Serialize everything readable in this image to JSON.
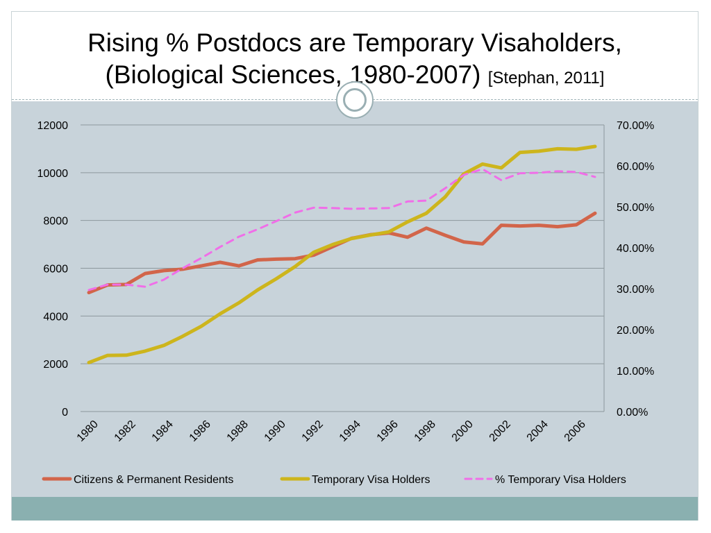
{
  "slide": {
    "title_line1": "Rising % Postdocs are Temporary Visaholders,",
    "title_line2": "(Biological Sciences, 1980-2007)",
    "citation": "[Stephan, 2011]"
  },
  "colors": {
    "citizens": "#d2654a",
    "temporary": "#cdb51c",
    "percent": "#f06ee8",
    "grid": "#8c979c",
    "panel": "#c8d3da",
    "footer": "#8ab0b0"
  },
  "chart_data": {
    "type": "line",
    "title": "",
    "xlabel": "",
    "ylabel": "",
    "x": [
      1980,
      1981,
      1982,
      1983,
      1984,
      1985,
      1986,
      1987,
      1988,
      1989,
      1990,
      1991,
      1992,
      1993,
      1994,
      1995,
      1996,
      1997,
      1998,
      1999,
      2000,
      2001,
      2002,
      2003,
      2004,
      2005,
      2006,
      2007
    ],
    "x_tick_labels": [
      "1980",
      "1982",
      "1984",
      "1986",
      "1988",
      "1990",
      "1992",
      "1994",
      "1996",
      "1998",
      "2000",
      "2002",
      "2004",
      "2006"
    ],
    "ylim": [
      0,
      12000
    ],
    "y_ticks": [
      "0",
      "2000",
      "4000",
      "6000",
      "8000",
      "10000",
      "12000"
    ],
    "y2lim": [
      0,
      0.7
    ],
    "y2_ticks": [
      "0.00%",
      "10.00%",
      "20.00%",
      "30.00%",
      "40.00%",
      "50.00%",
      "60.00%",
      "70.00%"
    ],
    "grid": true,
    "legend_position": "bottom",
    "series": [
      {
        "name": "Citizens & Permanent Residents",
        "axis": "left",
        "style": "solid",
        "values": [
          4980,
          5300,
          5320,
          5780,
          5900,
          5960,
          6100,
          6250,
          6100,
          6350,
          6380,
          6400,
          6550,
          6900,
          7250,
          7400,
          7480,
          7300,
          7680,
          7380,
          7100,
          7020,
          7800,
          7770,
          7800,
          7740,
          7820,
          8300
        ]
      },
      {
        "name": "Temporary Visa Holders",
        "axis": "left",
        "style": "solid",
        "values": [
          2050,
          2350,
          2360,
          2530,
          2770,
          3150,
          3570,
          4090,
          4550,
          5090,
          5560,
          6070,
          6670,
          6990,
          7240,
          7390,
          7520,
          7940,
          8300,
          8980,
          9950,
          10360,
          10200,
          10850,
          10900,
          11000,
          10980,
          11100
        ]
      },
      {
        "name": "% Temporary Visa Holders",
        "axis": "right",
        "style": "dashed",
        "values": [
          0.297,
          0.31,
          0.31,
          0.305,
          0.322,
          0.35,
          0.375,
          0.402,
          0.427,
          0.445,
          0.465,
          0.486,
          0.498,
          0.497,
          0.495,
          0.496,
          0.497,
          0.513,
          0.515,
          0.545,
          0.578,
          0.592,
          0.565,
          0.582,
          0.583,
          0.587,
          0.585,
          0.573
        ]
      }
    ]
  }
}
